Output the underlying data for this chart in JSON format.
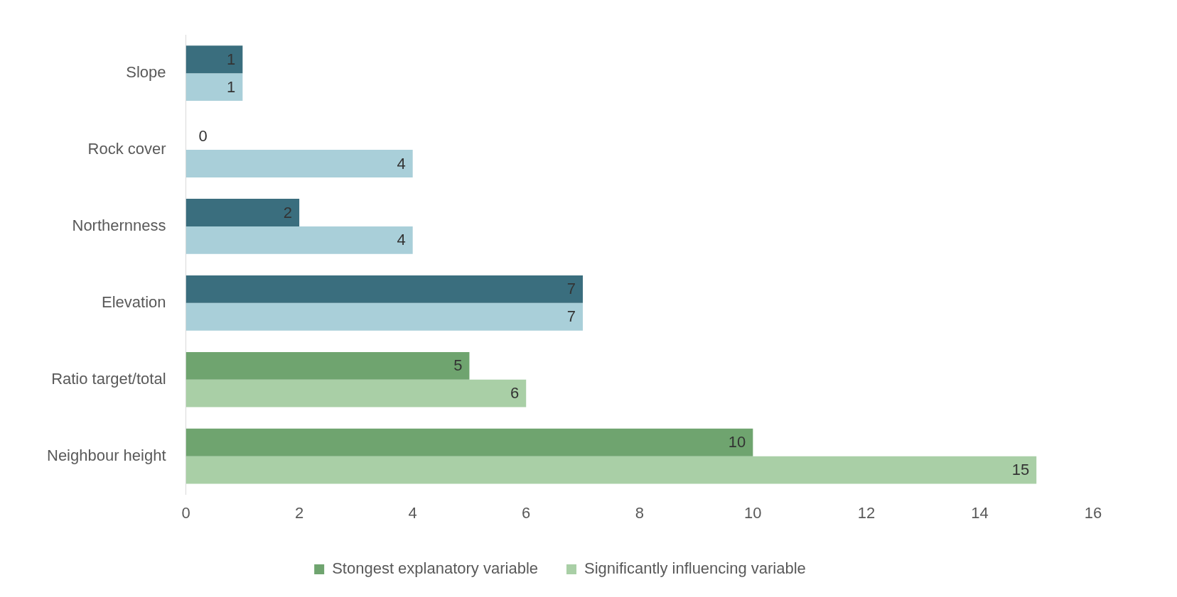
{
  "chart_data": {
    "type": "bar",
    "orientation": "horizontal",
    "categories": [
      "Slope",
      "Rock cover",
      "Northernness",
      "Elevation",
      "Ratio target/total",
      "Neighbour height"
    ],
    "series": [
      {
        "name": "Stongest explanatory variable",
        "color": "#6fa46f",
        "colors": [
          "#3a6e7e",
          "#3a6e7e",
          "#3a6e7e",
          "#3a6e7e",
          "#6fa46f",
          "#6fa46f"
        ],
        "values": [
          1,
          0,
          2,
          7,
          5,
          10
        ]
      },
      {
        "name": "Significantly influencing variable",
        "color": "#a9cfa6",
        "colors": [
          "#a9cfd9",
          "#a9cfd9",
          "#a9cfd9",
          "#a9cfd9",
          "#a9cfa6",
          "#a9cfa6"
        ],
        "values": [
          1,
          4,
          4,
          7,
          6,
          15
        ]
      }
    ],
    "xlim": [
      0,
      16
    ],
    "xticks": [
      0,
      2,
      4,
      6,
      8,
      10,
      12,
      14,
      16
    ],
    "grid": false,
    "legend": "bottom",
    "data_labels": true
  }
}
